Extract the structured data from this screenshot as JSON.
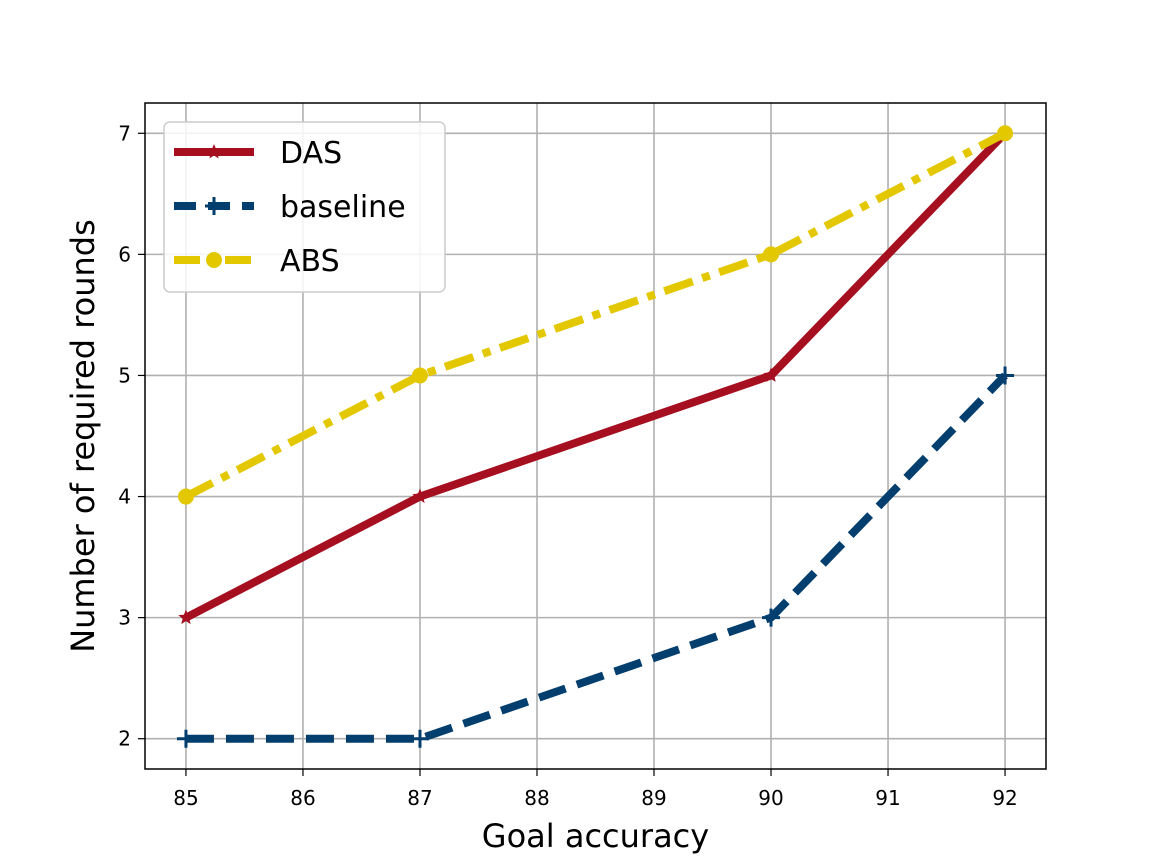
{
  "chart_data": {
    "type": "line",
    "title": "",
    "xlabel": "Goal accuracy",
    "ylabel": "Number of required rounds",
    "xlim": [
      84.65,
      92.35
    ],
    "ylim": [
      1.75,
      7.25
    ],
    "xticks": [
      85,
      86,
      87,
      88,
      89,
      90,
      91,
      92
    ],
    "yticks": [
      2,
      3,
      4,
      5,
      6,
      7
    ],
    "grid": true,
    "legend_position": "upper-left",
    "series": [
      {
        "name": "DAS",
        "x": [
          85,
          87,
          90,
          92
        ],
        "values": [
          3,
          4,
          5,
          7
        ],
        "color": "#a50f1f",
        "line_style": "solid",
        "marker": "star"
      },
      {
        "name": "baseline",
        "x": [
          85,
          87,
          90,
          92
        ],
        "values": [
          2,
          2,
          3,
          5
        ],
        "color": "#023e6e",
        "line_style": "dashed",
        "marker": "plus"
      },
      {
        "name": "ABS",
        "x": [
          85,
          87,
          90,
          92
        ],
        "values": [
          4,
          5,
          6,
          7
        ],
        "color": "#e3c800",
        "line_style": "dashdot",
        "marker": "circle"
      }
    ]
  }
}
